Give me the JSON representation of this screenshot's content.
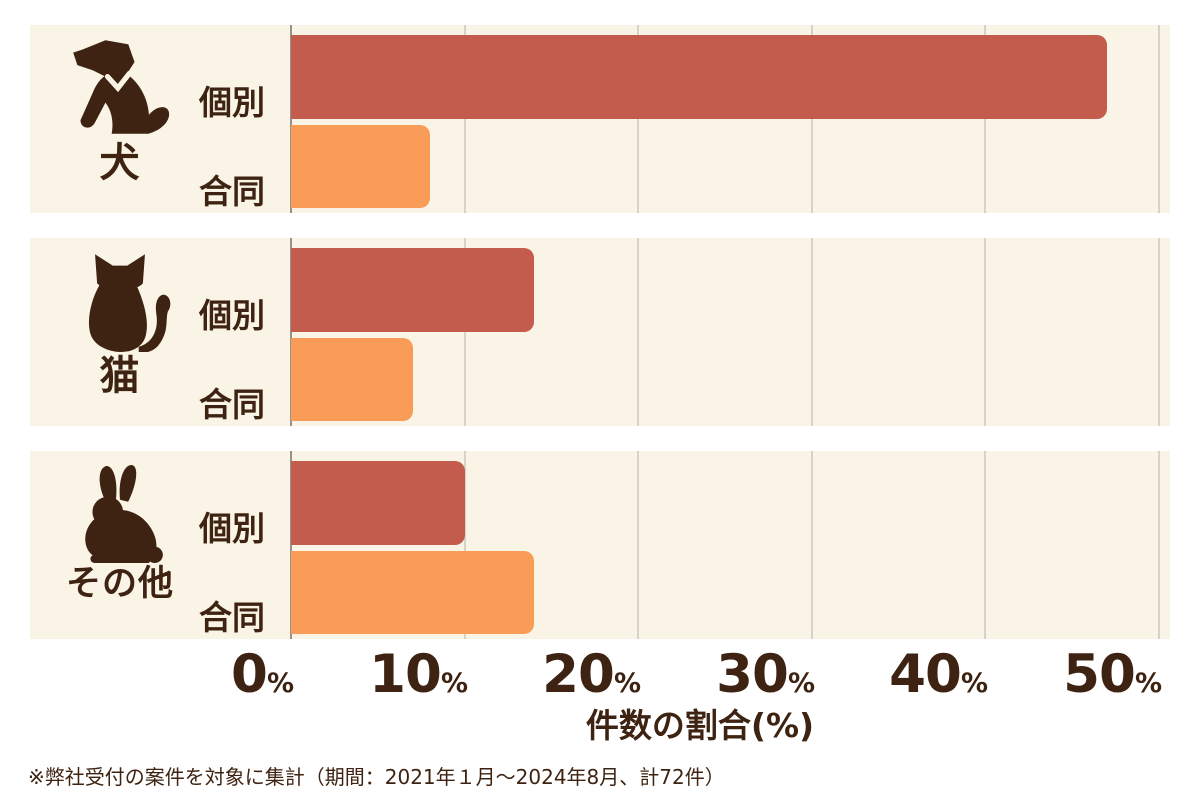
{
  "colors": {
    "panel-bg": "#FAF4E6",
    "bar-red": "#C35C4C",
    "bar-orange": "#F99C58",
    "ink": "#3E2312",
    "grid": "#D6D3CB",
    "axisline": "#96938D",
    "page-bg": "#FFFFFF"
  },
  "chart_data": {
    "type": "bar",
    "orientation": "horizontal",
    "title": "",
    "xlabel": "件数の割合(%)",
    "xlim": [
      0,
      50
    ],
    "ticks": [
      "0",
      "10",
      "20",
      "30",
      "40",
      "50"
    ],
    "tick_suffix": "%",
    "grid": true,
    "series_names": [
      "個別",
      "合同"
    ],
    "series_colors": [
      "#C35C4C",
      "#F99C58"
    ],
    "groups": [
      {
        "category": "犬",
        "icon": "dog-icon",
        "series": [
          {
            "name": "個別",
            "value": 47
          },
          {
            "name": "合同",
            "value": 8
          }
        ]
      },
      {
        "category": "猫",
        "icon": "cat-icon",
        "series": [
          {
            "name": "個別",
            "value": 14
          },
          {
            "name": "合同",
            "value": 7
          }
        ]
      },
      {
        "category": "その他",
        "icon": "rabbit-icon",
        "series": [
          {
            "name": "個別",
            "value": 10
          },
          {
            "name": "合同",
            "value": 14
          }
        ]
      }
    ]
  },
  "footnote": "※弊社受付の案件を対象に集計（期間：2021年１月～2024年8月、計72件）"
}
